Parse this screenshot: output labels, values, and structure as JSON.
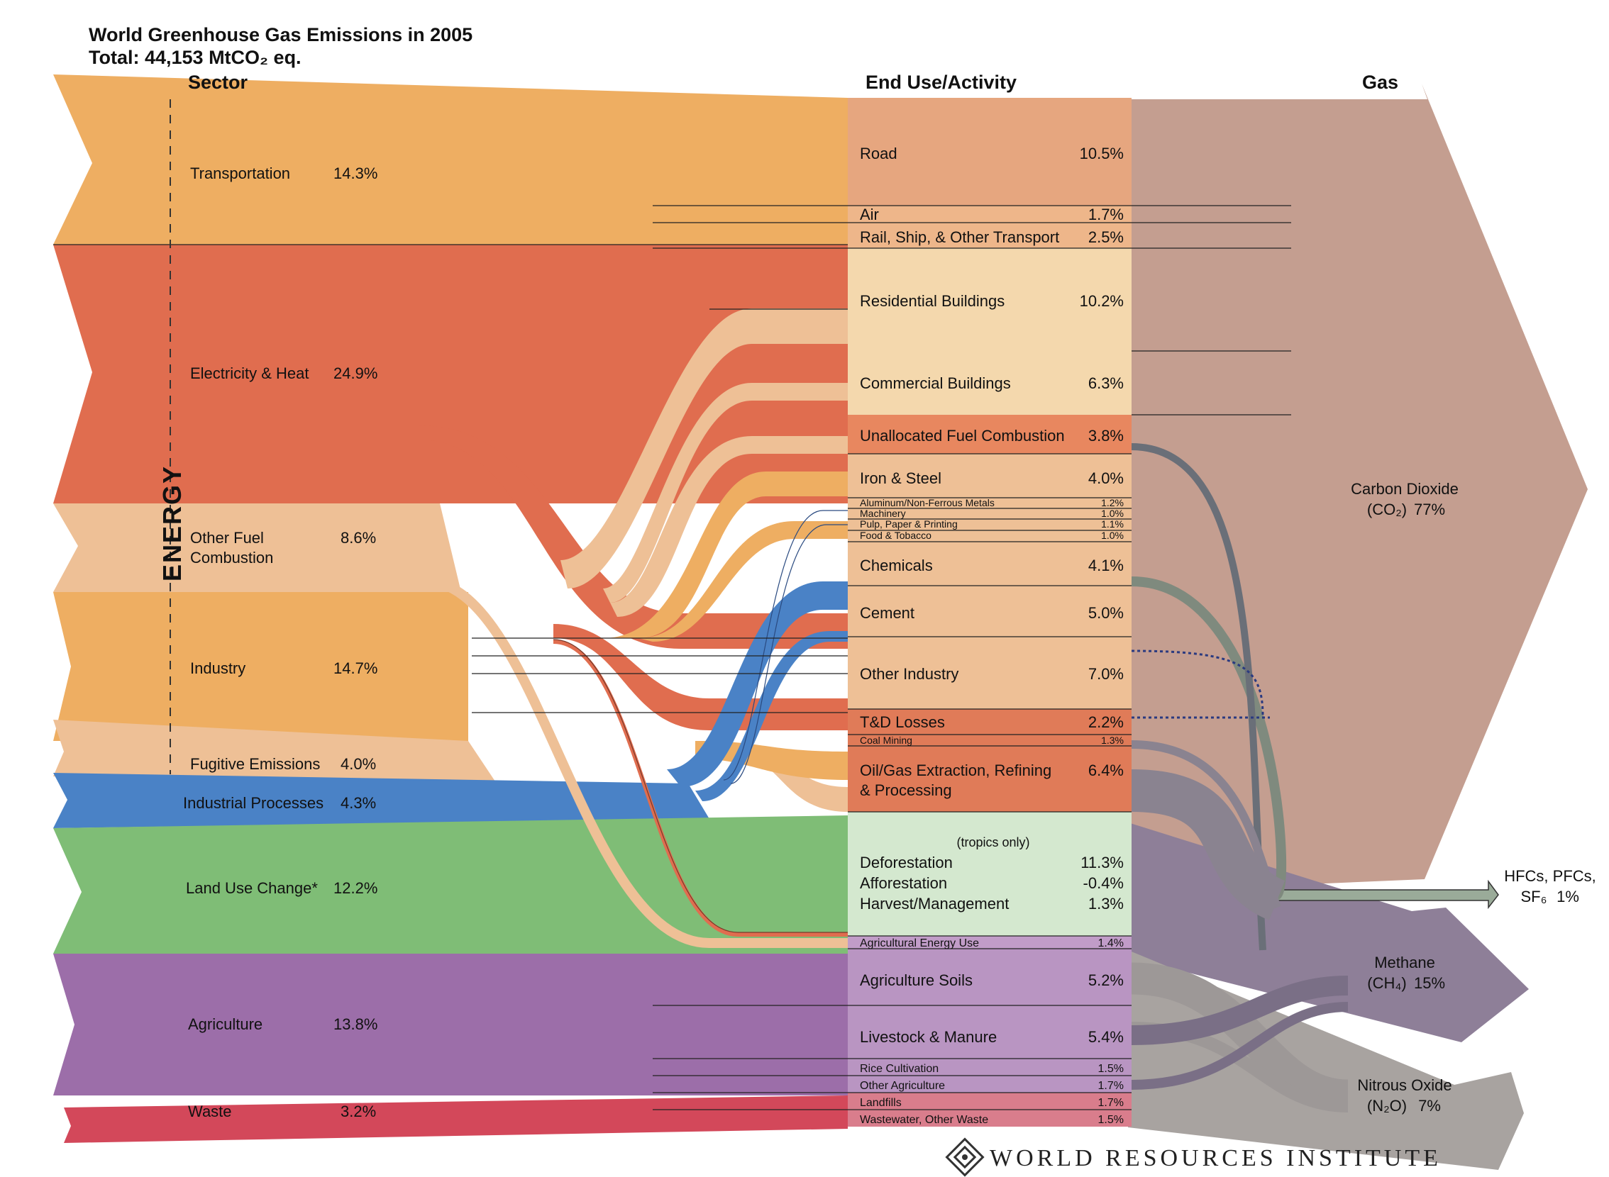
{
  "title": "World Greenhouse Gas Emissions in 2005",
  "subtitle": "Total: 44,153 MtCO₂ eq.",
  "columns": {
    "sector": "Sector",
    "end_use": "End Use/Activity",
    "gas": "Gas"
  },
  "energy_label": "ENERGY",
  "colors": {
    "transport": "#eeae62",
    "electricity": "#e06d4f",
    "other_fuel": "#eec096",
    "industry": "#eeae62",
    "fugitive": "#eec096",
    "industrial_processes": "#4a82c6",
    "land_use": "#7fbd76",
    "agriculture": "#9c6ea9",
    "waste": "#d3485a",
    "co2": "#c49e90",
    "methane": "#8e7f98",
    "n2o": "#a8a3a0"
  },
  "sectors": [
    {
      "name": "Transportation",
      "value": "14.3%"
    },
    {
      "name": "Electricity & Heat",
      "value": "24.9%"
    },
    {
      "name": "Other Fuel",
      "name2": "Combustion",
      "value": "8.6%"
    },
    {
      "name": "Industry",
      "value": "14.7%"
    },
    {
      "name": "Fugitive Emissions",
      "value": "4.0%"
    },
    {
      "name": "Industrial Processes",
      "value": "4.3%"
    },
    {
      "name": "Land Use Change*",
      "value": "12.2%"
    },
    {
      "name": "Agriculture",
      "value": "13.8%"
    },
    {
      "name": "Waste",
      "value": "3.2%"
    }
  ],
  "end_uses": [
    {
      "name": "Road",
      "value": "10.5%"
    },
    {
      "name": "Air",
      "value": "1.7%"
    },
    {
      "name": "Rail, Ship, & Other Transport",
      "value": "2.5%"
    },
    {
      "name": "Residential Buildings",
      "value": "10.2%"
    },
    {
      "name": "Commercial Buildings",
      "value": "6.3%"
    },
    {
      "name": "Unallocated Fuel Combustion",
      "value": "3.8%"
    },
    {
      "name": "Iron & Steel",
      "value": "4.0%"
    },
    {
      "name": "Aluminum/Non-Ferrous Metals",
      "value": "1.2%"
    },
    {
      "name": "Machinery",
      "value": "1.0%"
    },
    {
      "name": "Pulp, Paper & Printing",
      "value": "1.1%"
    },
    {
      "name": "Food & Tobacco",
      "value": "1.0%"
    },
    {
      "name": "Chemicals",
      "value": "4.1%"
    },
    {
      "name": "Cement",
      "value": "5.0%"
    },
    {
      "name": "Other Industry",
      "value": "7.0%"
    },
    {
      "name": "T&D Losses",
      "value": "2.2%"
    },
    {
      "name": "Coal Mining",
      "value": "1.3%"
    },
    {
      "name": "Oil/Gas Extraction, Refining",
      "name2": "& Processing",
      "value": "6.4%"
    },
    {
      "name": "(tropics only)",
      "value": ""
    },
    {
      "name": "Deforestation",
      "value": "11.3%"
    },
    {
      "name": "Afforestation",
      "value": "-0.4%"
    },
    {
      "name": "Harvest/Management",
      "value": "1.3%"
    },
    {
      "name": "Agricultural Energy Use",
      "value": "1.4%"
    },
    {
      "name": "Agriculture Soils",
      "value": "5.2%"
    },
    {
      "name": "Livestock & Manure",
      "value": "5.4%"
    },
    {
      "name": "Rice Cultivation",
      "value": "1.5%"
    },
    {
      "name": "Other Agriculture",
      "value": "1.7%"
    },
    {
      "name": "Landfills",
      "value": "1.7%"
    },
    {
      "name": "Wastewater, Other Waste",
      "value": "1.5%"
    }
  ],
  "gases": [
    {
      "name": "Carbon Dioxide",
      "formula": "(CO₂)",
      "value": "77%"
    },
    {
      "name": "HFCs, PFCs,",
      "formula": "SF₆",
      "value": "1%"
    },
    {
      "name": "Methane",
      "formula": "(CH₄)",
      "value": "15%"
    },
    {
      "name": "Nitrous Oxide",
      "formula": "(N₂O)",
      "value": "7%"
    }
  ],
  "logo_text": "WORLD RESOURCES INSTITUTE"
}
